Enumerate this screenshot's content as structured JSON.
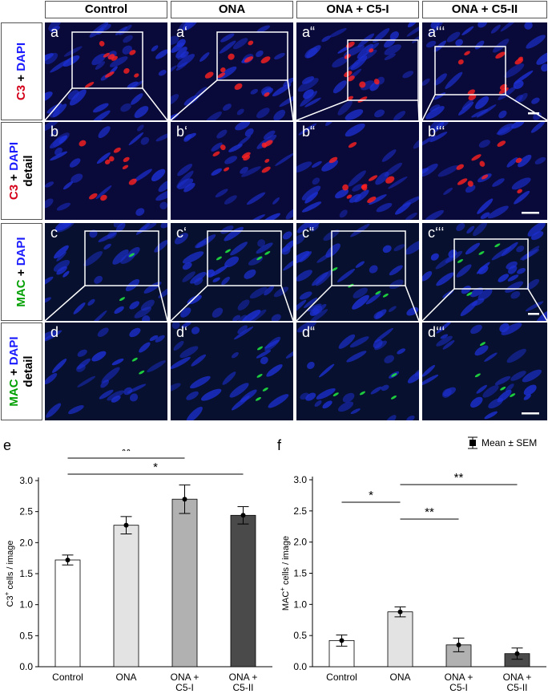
{
  "columns": [
    "Control",
    "ONA",
    "ONA + C5-I",
    "ONA + C5-II"
  ],
  "rows": [
    {
      "id": "a",
      "stain_lines": [
        [
          {
            "t": "C3",
            "c": "red"
          },
          {
            "t": " + ",
            "c": "black"
          },
          {
            "t": "DAPI",
            "c": "blue"
          }
        ]
      ]
    },
    {
      "id": "b",
      "stain_lines": [
        [
          {
            "t": "C3",
            "c": "red"
          },
          {
            "t": " + ",
            "c": "black"
          },
          {
            "t": "DAPI",
            "c": "blue"
          }
        ],
        [
          {
            "t": "detail",
            "c": "black"
          }
        ]
      ]
    },
    {
      "id": "c",
      "stain_lines": [
        [
          {
            "t": "MAC",
            "c": "green"
          },
          {
            "t": " + ",
            "c": "black"
          },
          {
            "t": "DAPI",
            "c": "blue"
          }
        ]
      ]
    },
    {
      "id": "d",
      "stain_lines": [
        [
          {
            "t": "MAC",
            "c": "green"
          },
          {
            "t": " + ",
            "c": "black"
          },
          {
            "t": "DAPI",
            "c": "blue"
          }
        ],
        [
          {
            "t": "detail",
            "c": "black"
          }
        ]
      ]
    }
  ],
  "panel_labels": [
    [
      "a",
      "a‘",
      "a“",
      "a‘‘‘"
    ],
    [
      "b",
      "b‘",
      "b“",
      "b‘‘‘"
    ],
    [
      "c",
      "c‘",
      "c“",
      "c‘‘‘"
    ],
    [
      "d",
      "d‘",
      "d“",
      "d‘‘‘"
    ]
  ],
  "colors": {
    "blue": "#1a1aff",
    "red": "#d4001a",
    "green": "#00a000",
    "stain_blue_nuclei": "#1c2fd0",
    "stain_red": "#ff2020",
    "stain_green": "#20e040"
  },
  "legend": {
    "label": "Mean ± SEM"
  },
  "chart_data": [
    {
      "panel": "e",
      "type": "bar",
      "categories": [
        "Control",
        "ONA",
        "ONA +\nC5-I",
        "ONA +\nC5-II"
      ],
      "values": [
        1.72,
        2.28,
        2.7,
        2.44
      ],
      "errors": [
        0.08,
        0.14,
        0.23,
        0.14
      ],
      "bar_colors": [
        "#ffffff",
        "#e3e3e3",
        "#b1b1b1",
        "#4a4a4a"
      ],
      "ylabel_parts": [
        "C3",
        "+",
        " cells / image"
      ],
      "ylim": [
        0,
        3.0
      ],
      "yticks": [
        "0.0",
        "0.5",
        "1.0",
        "1.5",
        "2.0",
        "2.5",
        "3.0"
      ],
      "significance": [
        {
          "from": 0,
          "to": 2,
          "label": "**"
        },
        {
          "from": 0,
          "to": 3,
          "label": "*"
        }
      ]
    },
    {
      "panel": "f",
      "type": "bar",
      "categories": [
        "Control",
        "ONA",
        "ONA +\nC5-I",
        "ONA +\nC5-II"
      ],
      "values": [
        0.42,
        0.88,
        0.35,
        0.21
      ],
      "errors": [
        0.09,
        0.08,
        0.11,
        0.09
      ],
      "bar_colors": [
        "#ffffff",
        "#e3e3e3",
        "#b1b1b1",
        "#4a4a4a"
      ],
      "ylabel_parts": [
        "MAC",
        "+",
        " cells / image"
      ],
      "ylim": [
        0,
        3.0
      ],
      "yticks": [
        "0.0",
        "0.5",
        "1.0",
        "1.5",
        "2.0",
        "2.5",
        "3.0"
      ],
      "significance": [
        {
          "from": 0,
          "to": 1,
          "label": "*"
        },
        {
          "from": 1,
          "to": 2,
          "label": "**"
        },
        {
          "from": 1,
          "to": 3,
          "label": "**"
        }
      ]
    }
  ]
}
